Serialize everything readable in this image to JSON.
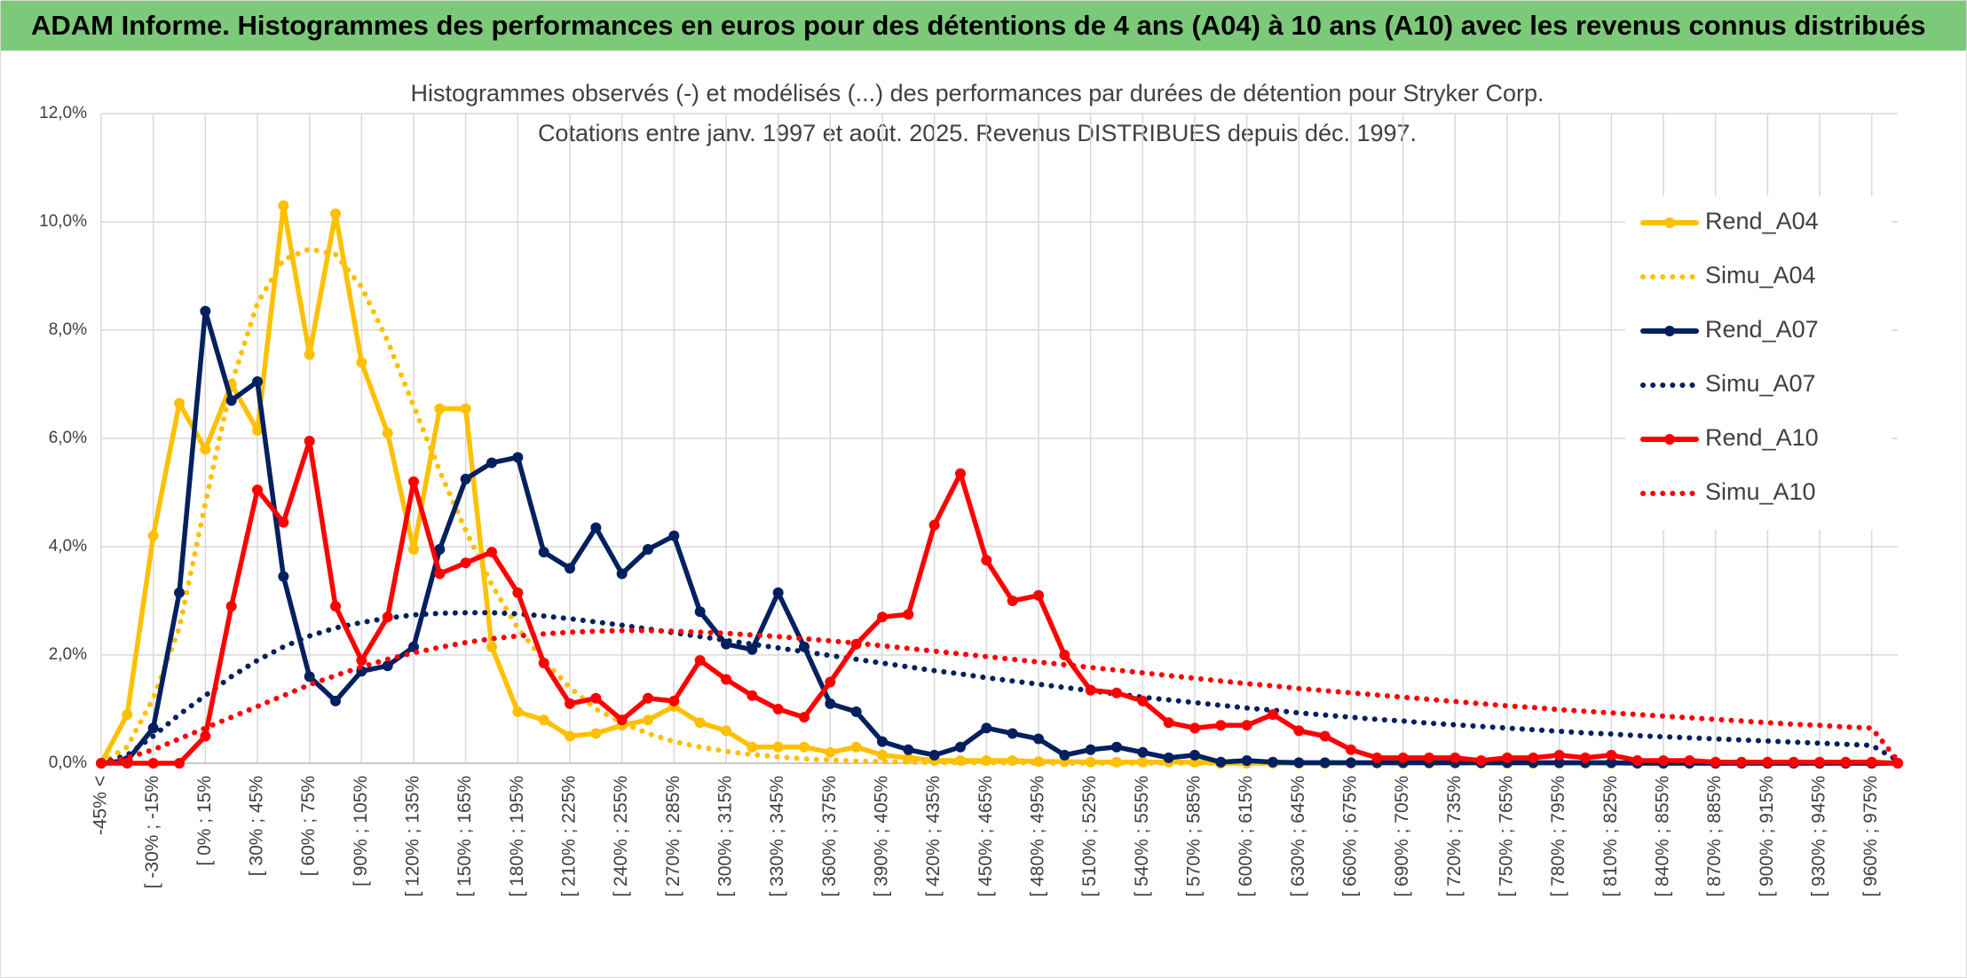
{
  "header": {
    "title": "ADAM Informe. Histogrammes des performances en euros pour des détentions de 4 ans (A04) à 10 ans (A10) avec les revenus connus distribués"
  },
  "chart_data": {
    "type": "line",
    "title": "Histogrammes observés (-) et modélisés (...) des performances par durées de détention pour Stryker Corp.",
    "subtitle": "Cotations entre janv. 1997 et août. 2025. Revenus DISTRIBUES depuis déc. 1997.",
    "categories": [
      "-45% <",
      null,
      "[ -30% ; -15%",
      null,
      "[ 0% ; 15%",
      null,
      "[ 30% ; 45%",
      null,
      "[ 60% ; 75%",
      null,
      "[ 90% ; 105%",
      null,
      "[ 120% ; 135%",
      null,
      "[ 150% ; 165%",
      null,
      "[ 180% ; 195%",
      null,
      "[ 210% ; 225%",
      null,
      "[ 240% ; 255%",
      null,
      "[ 270% ; 285%",
      null,
      "[ 300% ; 315%",
      null,
      "[ 330% ; 345%",
      null,
      "[ 360% ; 375%",
      null,
      "[ 390% ; 405%",
      null,
      "[ 420% ; 435%",
      null,
      "[ 450% ; 465%",
      null,
      "[ 480% ; 495%",
      null,
      "[ 510% ; 525%",
      null,
      "[ 540% ; 555%",
      null,
      "[ 570% ; 585%",
      null,
      "[ 600% ; 615%",
      null,
      "[ 630% ; 645%",
      null,
      "[ 660% ; 675%",
      null,
      "[ 690% ; 705%",
      null,
      "[ 720% ; 735%",
      null,
      "[ 750% ; 765%",
      null,
      "[ 780% ; 795%",
      null,
      "[ 810% ; 825%",
      null,
      "[ 840% ; 855%",
      null,
      "[ 870% ; 885%",
      null,
      "[ 900% ; 915%",
      null,
      "[ 930% ; 945%",
      null,
      "[ 960% ; 975%",
      null
    ],
    "series": [
      {
        "name": "Rend_A04",
        "color": "#ffc000",
        "style": "solid",
        "markers": true,
        "values": [
          0,
          0.9,
          4.2,
          6.65,
          5.8,
          7.0,
          6.15,
          10.3,
          7.55,
          10.15,
          7.4,
          6.1,
          3.95,
          6.55,
          6.55,
          2.15,
          0.95,
          0.8,
          0.5,
          0.55,
          0.7,
          0.8,
          1.05,
          0.75,
          0.6,
          0.3,
          0.3,
          0.3,
          0.2,
          0.3,
          0.15,
          0.1,
          0.05,
          0.05,
          0.05,
          0.05,
          0.03,
          0.03,
          0.02,
          0.02,
          0.02,
          0.02,
          0.02,
          0,
          0,
          0,
          0,
          0,
          0,
          0,
          0,
          0,
          0,
          0,
          0,
          0,
          0,
          0,
          0,
          0,
          0,
          0,
          0,
          0,
          0,
          0,
          0,
          0,
          0,
          0
        ]
      },
      {
        "name": "Simu_A04",
        "color": "#ffc000",
        "style": "dotted",
        "markers": false,
        "values": [
          0,
          0.3,
          1.2,
          2.5,
          4.8,
          7.0,
          8.5,
          9.3,
          9.5,
          9.4,
          8.8,
          7.8,
          6.6,
          5.4,
          4.3,
          3.3,
          2.5,
          1.9,
          1.4,
          1.0,
          0.75,
          0.55,
          0.4,
          0.3,
          0.22,
          0.16,
          0.12,
          0.08,
          0.06,
          0.04,
          0.03,
          0.02,
          0.01,
          0.01,
          0.01,
          0.01,
          0,
          0,
          0,
          0,
          0,
          0,
          0,
          0,
          0,
          0,
          0,
          0,
          0,
          0,
          0,
          0,
          0,
          0,
          0,
          0,
          0,
          0,
          0,
          0,
          0,
          0,
          0,
          0,
          0,
          0,
          0,
          0,
          0,
          0
        ]
      },
      {
        "name": "Rend_A07",
        "color": "#002060",
        "style": "solid",
        "markers": true,
        "values": [
          0,
          0.05,
          0.65,
          3.15,
          8.35,
          6.7,
          7.05,
          3.45,
          1.6,
          1.15,
          1.7,
          1.8,
          2.15,
          3.95,
          5.25,
          5.55,
          5.65,
          3.9,
          3.6,
          4.35,
          3.5,
          3.95,
          4.2,
          2.8,
          2.2,
          2.1,
          3.15,
          2.15,
          1.1,
          0.95,
          0.4,
          0.25,
          0.15,
          0.3,
          0.65,
          0.55,
          0.45,
          0.15,
          0.25,
          0.3,
          0.2,
          0.1,
          0.15,
          0.02,
          0.05,
          0.02,
          0.01,
          0.01,
          0.01,
          0.01,
          0.01,
          0.01,
          0.01,
          0.01,
          0.01,
          0.01,
          0.01,
          0.01,
          0.01,
          0,
          0,
          0,
          0,
          0,
          0,
          0,
          0,
          0,
          0,
          0
        ]
      },
      {
        "name": "Simu_A07",
        "color": "#002060",
        "style": "dotted",
        "markers": false,
        "values": [
          0,
          0.15,
          0.5,
          0.9,
          1.25,
          1.6,
          1.9,
          2.15,
          2.35,
          2.5,
          2.6,
          2.68,
          2.74,
          2.77,
          2.78,
          2.78,
          2.76,
          2.72,
          2.67,
          2.61,
          2.55,
          2.48,
          2.41,
          2.34,
          2.27,
          2.2,
          2.13,
          2.06,
          1.99,
          1.92,
          1.85,
          1.78,
          1.71,
          1.65,
          1.58,
          1.52,
          1.46,
          1.4,
          1.34,
          1.28,
          1.22,
          1.17,
          1.12,
          1.07,
          1.02,
          0.98,
          0.93,
          0.89,
          0.85,
          0.81,
          0.78,
          0.74,
          0.71,
          0.68,
          0.65,
          0.62,
          0.59,
          0.56,
          0.54,
          0.51,
          0.49,
          0.47,
          0.45,
          0.43,
          0.41,
          0.39,
          0.37,
          0.35,
          0.33,
          0.05
        ]
      },
      {
        "name": "Rend_A10",
        "color": "#ff0000",
        "style": "solid",
        "markers": true,
        "values": [
          0,
          0,
          0,
          0,
          0.5,
          2.9,
          5.05,
          4.45,
          5.95,
          2.9,
          1.9,
          2.7,
          5.2,
          3.5,
          3.7,
          3.9,
          3.15,
          1.85,
          1.1,
          1.2,
          0.8,
          1.2,
          1.15,
          1.9,
          1.55,
          1.25,
          1.0,
          0.85,
          1.5,
          2.2,
          2.7,
          2.75,
          4.4,
          5.35,
          3.75,
          3.0,
          3.1,
          2.0,
          1.35,
          1.3,
          1.15,
          0.75,
          0.65,
          0.7,
          0.7,
          0.9,
          0.6,
          0.5,
          0.25,
          0.1,
          0.1,
          0.1,
          0.1,
          0.05,
          0.1,
          0.1,
          0.15,
          0.1,
          0.15,
          0.05,
          0.05,
          0.05,
          0.02,
          0.02,
          0.02,
          0.02,
          0.02,
          0.02,
          0.02,
          0
        ]
      },
      {
        "name": "Simu_A10",
        "color": "#ff0000",
        "style": "dotted",
        "markers": false,
        "values": [
          0,
          0.1,
          0.25,
          0.45,
          0.65,
          0.85,
          1.05,
          1.25,
          1.45,
          1.62,
          1.78,
          1.92,
          2.04,
          2.14,
          2.23,
          2.3,
          2.35,
          2.39,
          2.42,
          2.44,
          2.45,
          2.45,
          2.44,
          2.42,
          2.4,
          2.37,
          2.34,
          2.3,
          2.26,
          2.22,
          2.17,
          2.12,
          2.07,
          2.02,
          1.97,
          1.92,
          1.87,
          1.82,
          1.77,
          1.72,
          1.67,
          1.62,
          1.57,
          1.52,
          1.47,
          1.43,
          1.38,
          1.34,
          1.3,
          1.26,
          1.22,
          1.18,
          1.14,
          1.1,
          1.06,
          1.03,
          0.99,
          0.96,
          0.93,
          0.9,
          0.87,
          0.84,
          0.81,
          0.78,
          0.75,
          0.72,
          0.7,
          0.67,
          0.65,
          0.05
        ]
      }
    ],
    "ylim": [
      0,
      12
    ],
    "yticks": [
      {
        "value": 0,
        "label": "0,0%"
      },
      {
        "value": 2,
        "label": "2,0%"
      },
      {
        "value": 4,
        "label": "4,0%"
      },
      {
        "value": 6,
        "label": "6,0%"
      },
      {
        "value": 8,
        "label": "8,0%"
      },
      {
        "value": 10,
        "label": "10,0%"
      },
      {
        "value": 12,
        "label": "12,0%"
      }
    ],
    "grid": true,
    "legend": "right"
  }
}
